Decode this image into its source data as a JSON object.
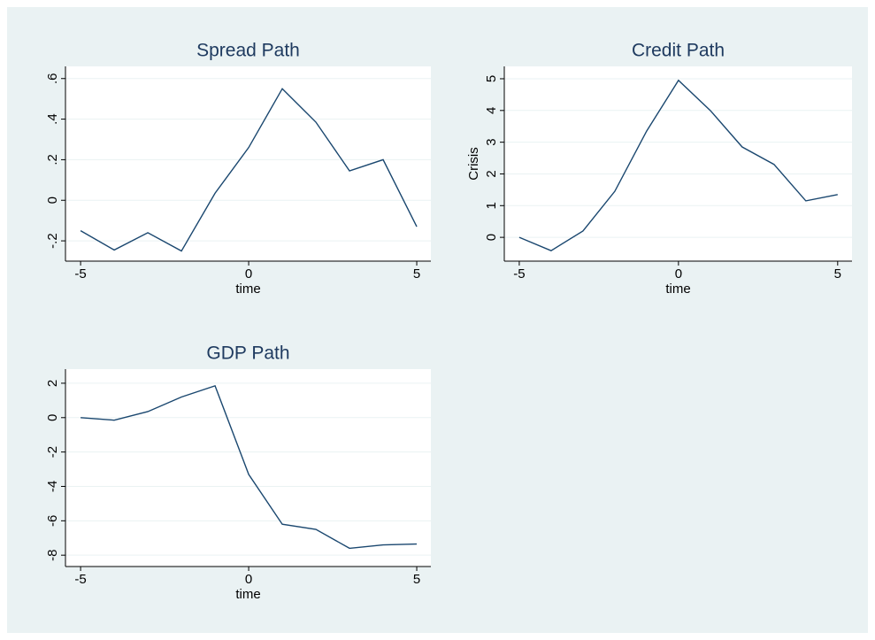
{
  "chart_data": [
    {
      "type": "line",
      "title": "Spread Path",
      "xlabel": "time",
      "x": [
        -5,
        -4,
        -3,
        -2,
        -1,
        0,
        1,
        2,
        3,
        4,
        5
      ],
      "series": [
        {
          "color": "#1a476f",
          "values": [
            -0.15,
            -0.245,
            -0.16,
            -0.25,
            0.035,
            0.26,
            0.55,
            0.385,
            0.145,
            0.2,
            -0.13
          ]
        }
      ],
      "xlim": [
        -5.45,
        5.42
      ],
      "xticks": [
        -5,
        0,
        5
      ],
      "ylim": [
        -0.3,
        0.66
      ],
      "yticks": [
        {
          "value": -0.2,
          "label": "-.2"
        },
        0,
        {
          "value": 0.2,
          "label": ".2"
        },
        {
          "value": 0.4,
          "label": ".4"
        },
        {
          "value": 0.6,
          "label": ".6"
        }
      ],
      "grid": true
    },
    {
      "type": "line",
      "title": "Credit Path",
      "xlabel": "time",
      "ylabel": "Crisis",
      "x": [
        -5,
        -4,
        -3,
        -2,
        -1,
        0,
        1,
        2,
        3,
        4,
        5
      ],
      "series": [
        {
          "color": "#1a476f",
          "values": [
            0,
            -0.42,
            0.2,
            1.45,
            3.35,
            4.95,
            4.0,
            2.85,
            2.3,
            1.15,
            1.35
          ]
        }
      ],
      "xlim": [
        -5.47,
        5.45
      ],
      "xticks": [
        -5,
        0,
        5
      ],
      "ylim": [
        -0.75,
        5.39
      ],
      "yticks": [
        0,
        1,
        2,
        3,
        4,
        5
      ],
      "grid": true
    },
    {
      "type": "line",
      "title": "GDP Path",
      "xlabel": "time",
      "x": [
        -5,
        -4,
        -3,
        -2,
        -1,
        0,
        1,
        2,
        3,
        4,
        5
      ],
      "series": [
        {
          "color": "#1a476f",
          "values": [
            0,
            -0.15,
            0.35,
            1.2,
            1.85,
            -3.3,
            -6.2,
            -6.5,
            -7.6,
            -7.4,
            -7.35
          ]
        }
      ],
      "xlim": [
        -5.45,
        5.42
      ],
      "xticks": [
        -5,
        0,
        5
      ],
      "ylim": [
        -8.66,
        2.82
      ],
      "yticks": [
        -8,
        -6,
        -4,
        -2,
        0,
        2
      ],
      "grid": true
    }
  ]
}
